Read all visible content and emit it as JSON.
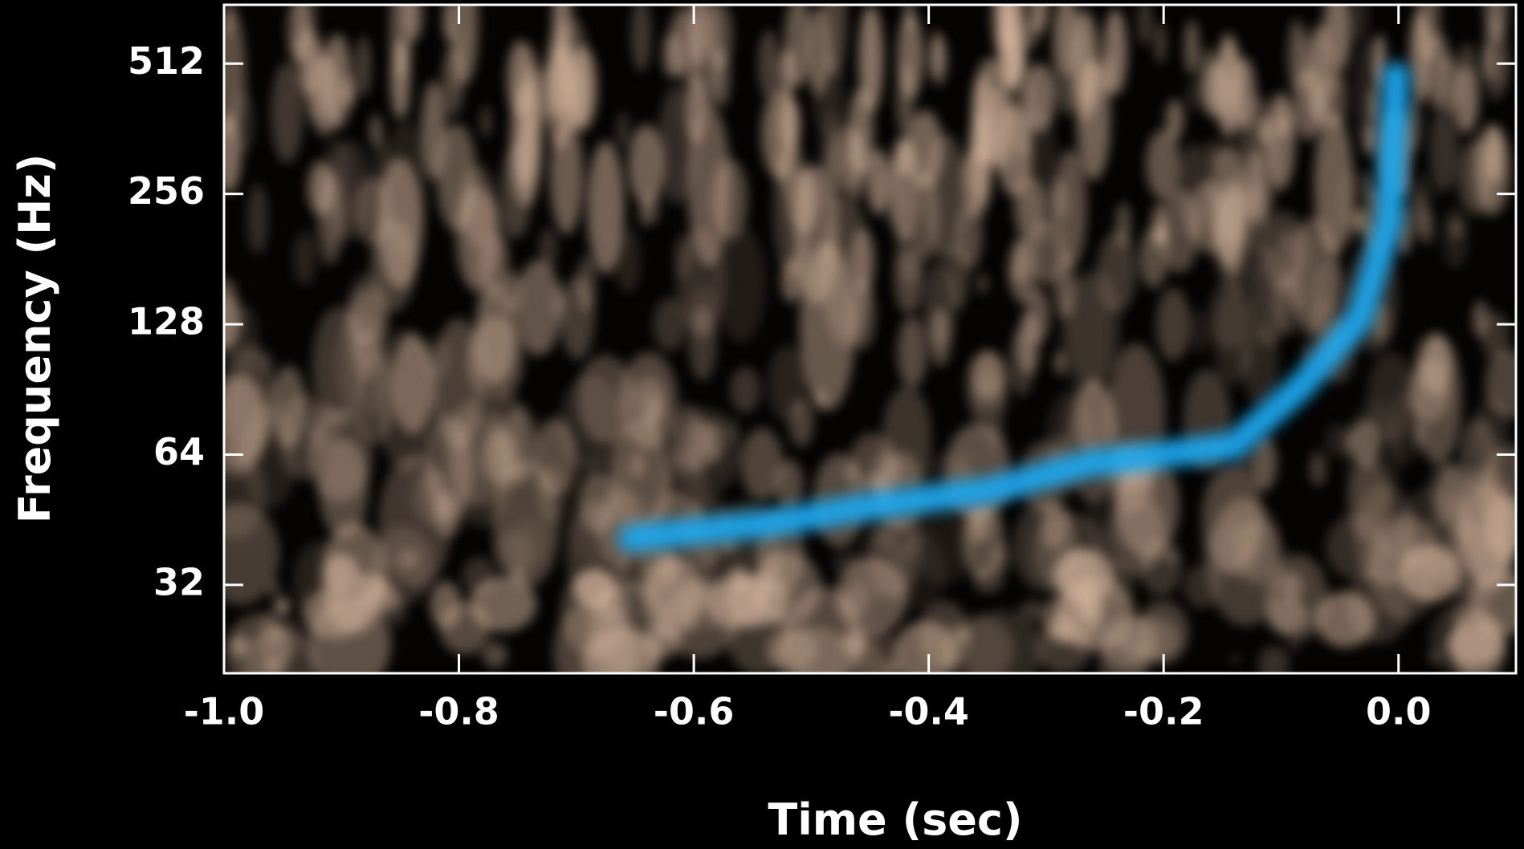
{
  "chart_data": {
    "type": "spectrogram",
    "x_label": "Time (sec)",
    "y_label": "Frequency (Hz)",
    "xlim": [
      -1.0,
      0.1
    ],
    "ylim": [
      20,
      700
    ],
    "log_y": true,
    "log_base": 2,
    "grid": false,
    "xticks": [
      {
        "value": -1.0,
        "label": "-1.0"
      },
      {
        "value": -0.8,
        "label": "-0.8"
      },
      {
        "value": -0.6,
        "label": "-0.6"
      },
      {
        "value": -0.4,
        "label": "-0.4"
      },
      {
        "value": -0.2,
        "label": "-0.2"
      },
      {
        "value": 0.0,
        "label": "0.0"
      }
    ],
    "yticks": [
      32,
      64,
      128,
      256,
      512
    ],
    "series": [
      {
        "color": "#1fa6ec",
        "x": [
          -0.653,
          -0.529,
          -0.463,
          -0.347,
          -0.264,
          -0.14,
          -0.083,
          -0.033,
          -0.008,
          -0.002
        ],
        "values": [
          41,
          44.6,
          48,
          53,
          61,
          67,
          92,
          132,
          221,
          480
        ]
      }
    ]
  }
}
